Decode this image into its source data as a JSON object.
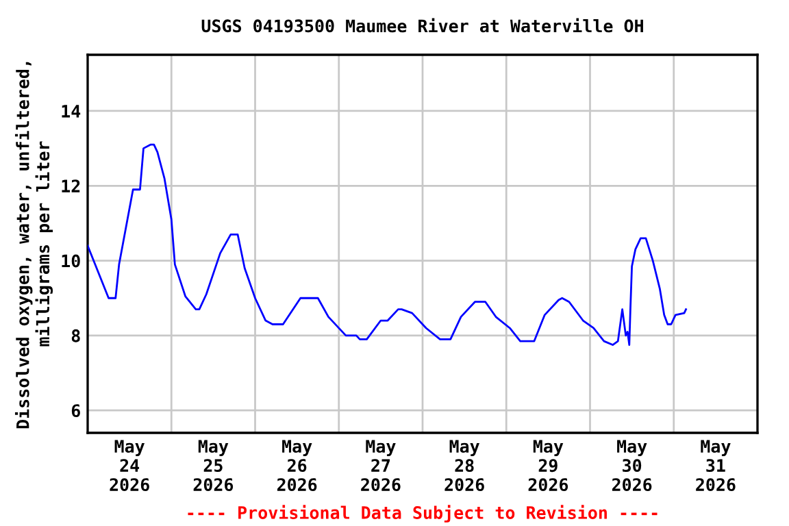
{
  "chart_data": {
    "type": "line",
    "title": "USGS 04193500 Maumee River at Waterville OH",
    "ylabel": "Dissolved oxygen, water, unfiltered,\nmilligrams per liter",
    "annotations": [
      "---- Provisional Data Subject to Revision ----"
    ],
    "x": [
      "2026-05-24T00:00",
      "2026-05-24T06:00",
      "2026-05-24T08:00",
      "2026-05-24T09:00",
      "2026-05-24T13:00",
      "2026-05-24T15:00",
      "2026-05-24T16:00",
      "2026-05-24T18:00",
      "2026-05-24T19:00",
      "2026-05-24T20:00",
      "2026-05-24T22:00",
      "2026-05-25T00:00",
      "2026-05-25T01:00",
      "2026-05-25T04:00",
      "2026-05-25T07:00",
      "2026-05-25T08:00",
      "2026-05-25T10:00",
      "2026-05-25T14:00",
      "2026-05-25T17:00",
      "2026-05-25T19:00",
      "2026-05-25T21:00",
      "2026-05-26T00:00",
      "2026-05-26T03:00",
      "2026-05-26T05:00",
      "2026-05-26T08:00",
      "2026-05-26T13:00",
      "2026-05-26T18:00",
      "2026-05-26T21:00",
      "2026-05-27T02:00",
      "2026-05-27T05:00",
      "2026-05-27T06:00",
      "2026-05-27T08:00",
      "2026-05-27T12:00",
      "2026-05-27T14:00",
      "2026-05-27T17:00",
      "2026-05-27T18:00",
      "2026-05-27T21:00",
      "2026-05-28T01:00",
      "2026-05-28T05:00",
      "2026-05-28T08:00",
      "2026-05-28T11:00",
      "2026-05-28T15:00",
      "2026-05-28T18:00",
      "2026-05-28T21:00",
      "2026-05-29T01:00",
      "2026-05-29T04:00",
      "2026-05-29T08:00",
      "2026-05-29T11:00",
      "2026-05-29T15:00",
      "2026-05-29T16:00",
      "2026-05-29T18:00",
      "2026-05-29T22:00",
      "2026-05-30T01:00",
      "2026-05-30T04:00",
      "2026-05-30T06:30",
      "2026-05-30T08:00",
      "2026-05-30T09:15",
      "2026-05-30T10:15",
      "2026-05-30T10:45",
      "2026-05-30T11:15",
      "2026-05-30T11:35",
      "2026-05-30T12:00",
      "2026-05-30T13:00",
      "2026-05-30T14:30",
      "2026-05-30T16:00",
      "2026-05-30T18:00",
      "2026-05-30T20:00",
      "2026-05-30T21:15",
      "2026-05-30T22:15",
      "2026-05-30T23:15",
      "2026-05-31T00:30",
      "2026-05-31T03:00",
      "2026-05-31T03:30"
    ],
    "series": [
      {
        "color": "#0000ff",
        "values": [
          10.4,
          9.0,
          9.0,
          9.9,
          11.9,
          11.9,
          13.0,
          13.1,
          13.1,
          12.9,
          12.2,
          11.1,
          9.9,
          9.05,
          8.7,
          8.7,
          9.1,
          10.2,
          10.7,
          10.7,
          9.8,
          9.0,
          8.4,
          8.3,
          8.3,
          9.0,
          9.0,
          8.5,
          8.0,
          8.0,
          7.9,
          7.9,
          8.4,
          8.4,
          8.7,
          8.7,
          8.6,
          8.2,
          7.9,
          7.9,
          8.5,
          8.9,
          8.9,
          8.5,
          8.2,
          7.85,
          7.85,
          8.55,
          8.95,
          9.0,
          8.9,
          8.4,
          8.2,
          7.85,
          7.75,
          7.85,
          8.7,
          8.0,
          8.1,
          7.75,
          8.75,
          9.85,
          10.3,
          10.6,
          10.6,
          10.0,
          9.25,
          8.55,
          8.3,
          8.3,
          8.55,
          8.6,
          8.7
        ]
      }
    ],
    "xlim": [
      "2026-05-24T00:00",
      "2026-06-01T00:00"
    ],
    "xticks": [
      {
        "value": "2026-05-24T12:00",
        "label": "May\n24\n2026"
      },
      {
        "value": "2026-05-25T00:00",
        "label": null
      },
      {
        "value": "2026-05-25T12:00",
        "label": "May\n25\n2026"
      },
      {
        "value": "2026-05-26T00:00",
        "label": null
      },
      {
        "value": "2026-05-26T12:00",
        "label": "May\n26\n2026"
      },
      {
        "value": "2026-05-27T00:00",
        "label": null
      },
      {
        "value": "2026-05-27T12:00",
        "label": "May\n27\n2026"
      },
      {
        "value": "2026-05-28T00:00",
        "label": null
      },
      {
        "value": "2026-05-28T12:00",
        "label": "May\n28\n2026"
      },
      {
        "value": "2026-05-29T00:00",
        "label": null
      },
      {
        "value": "2026-05-29T12:00",
        "label": "May\n29\n2026"
      },
      {
        "value": "2026-05-30T00:00",
        "label": null
      },
      {
        "value": "2026-05-30T12:00",
        "label": "May\n30\n2026"
      },
      {
        "value": "2026-05-31T00:00",
        "label": null
      },
      {
        "value": "2026-05-31T12:00",
        "label": "May\n31\n2026"
      }
    ],
    "ylim": [
      5.4,
      15.5
    ],
    "yticks": [
      6,
      8,
      10,
      12,
      14
    ],
    "grid": true,
    "marker": "none",
    "line_style": "solid"
  }
}
